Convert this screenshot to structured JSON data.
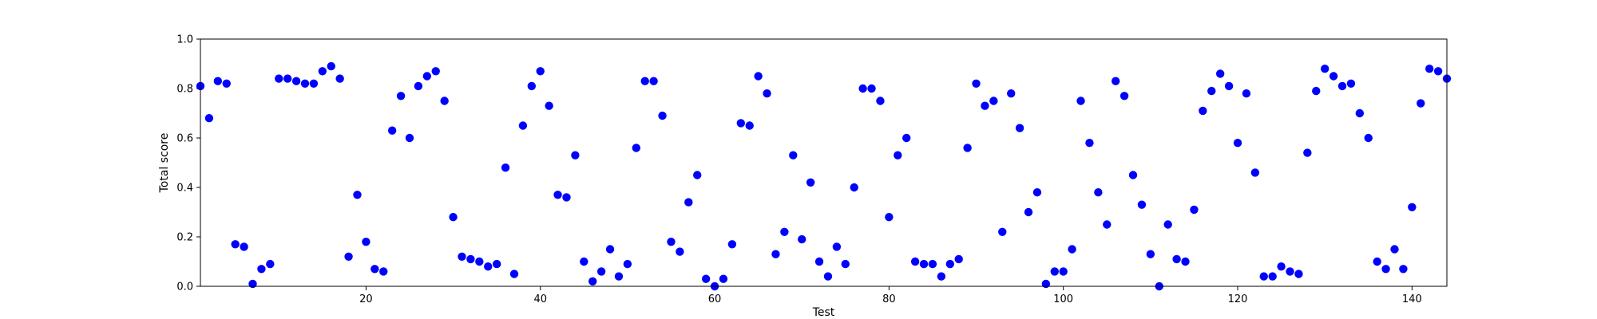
{
  "chart_data": {
    "type": "scatter",
    "title": "",
    "xlabel": "Test",
    "ylabel": "Total score",
    "xlim": [
      1,
      144
    ],
    "ylim": [
      0,
      1.0
    ],
    "xticks": [
      20,
      40,
      60,
      80,
      100,
      120,
      140
    ],
    "yticks": [
      "0.0",
      "0.2",
      "0.4",
      "0.6",
      "0.8",
      "1.0"
    ],
    "grid": false,
    "marker_color": "#0000ff",
    "x": [
      1,
      2,
      3,
      4,
      5,
      6,
      7,
      8,
      9,
      10,
      11,
      12,
      13,
      14,
      15,
      16,
      17,
      18,
      19,
      20,
      21,
      22,
      23,
      24,
      25,
      26,
      27,
      28,
      29,
      30,
      31,
      32,
      33,
      34,
      35,
      36,
      37,
      38,
      39,
      40,
      41,
      42,
      43,
      44,
      45,
      46,
      47,
      48,
      49,
      50,
      51,
      52,
      53,
      54,
      55,
      56,
      57,
      58,
      59,
      60,
      61,
      62,
      63,
      64,
      65,
      66,
      67,
      68,
      69,
      70,
      71,
      72,
      73,
      74,
      75,
      76,
      77,
      78,
      79,
      80,
      81,
      82,
      83,
      84,
      85,
      86,
      87,
      88,
      89,
      90,
      91,
      92,
      93,
      94,
      95,
      96,
      97,
      98,
      99,
      100,
      101,
      102,
      103,
      104,
      105,
      106,
      107,
      108,
      109,
      110,
      111,
      112,
      113,
      114,
      115,
      116,
      117,
      118,
      119,
      120,
      121,
      122,
      123,
      124,
      125,
      126,
      127,
      128,
      129,
      130,
      131,
      132,
      133,
      134,
      135,
      136,
      137,
      138,
      139,
      140,
      141,
      142,
      143,
      144
    ],
    "y": [
      0.81,
      0.68,
      0.83,
      0.82,
      0.17,
      0.16,
      0.01,
      0.07,
      0.09,
      0.84,
      0.84,
      0.83,
      0.82,
      0.82,
      0.87,
      0.89,
      0.84,
      0.12,
      0.37,
      0.18,
      0.07,
      0.06,
      0.63,
      0.77,
      0.6,
      0.81,
      0.85,
      0.87,
      0.75,
      0.28,
      0.12,
      0.11,
      0.1,
      0.08,
      0.09,
      0.48,
      0.05,
      0.65,
      0.81,
      0.87,
      0.73,
      0.37,
      0.36,
      0.53,
      0.1,
      0.02,
      0.06,
      0.15,
      0.04,
      0.09,
      0.56,
      0.83,
      0.83,
      0.69,
      0.18,
      0.14,
      0.34,
      0.45,
      0.03,
      0.0,
      0.03,
      0.17,
      0.66,
      0.65,
      0.85,
      0.78,
      0.13,
      0.22,
      0.53,
      0.19,
      0.42,
      0.1,
      0.04,
      0.16,
      0.09,
      0.4,
      0.8,
      0.8,
      0.75,
      0.28,
      0.53,
      0.6,
      0.1,
      0.09,
      0.09,
      0.04,
      0.09,
      0.11,
      0.56,
      0.82,
      0.73,
      0.75,
      0.22,
      0.78,
      0.64,
      0.3,
      0.38,
      0.01,
      0.06,
      0.06,
      0.15,
      0.75,
      0.58,
      0.38,
      0.25,
      0.83,
      0.77,
      0.45,
      0.33,
      0.13,
      0.0,
      0.25,
      0.11,
      0.1,
      0.31,
      0.71,
      0.79,
      0.86,
      0.81,
      0.58,
      0.78,
      0.46,
      0.04,
      0.04,
      0.08,
      0.06,
      0.05,
      0.54,
      0.79,
      0.88,
      0.85,
      0.81,
      0.82,
      0.7,
      0.6,
      0.1,
      0.07,
      0.15,
      0.07,
      0.32,
      0.74,
      0.88,
      0.87,
      0.84
    ]
  }
}
